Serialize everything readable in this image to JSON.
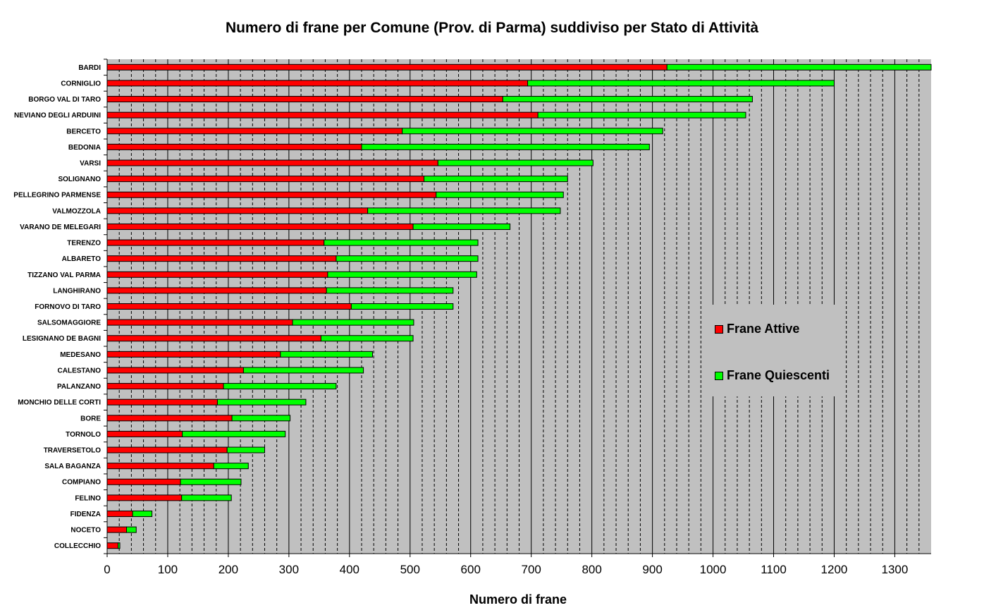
{
  "chart_data": {
    "type": "bar",
    "orientation": "horizontal",
    "stacked": true,
    "title": "Numero di frane per Comune (Prov. di Parma) suddiviso per Stato di Attività",
    "xlabel": "Numero di frane",
    "ylabel": "",
    "xlim": [
      0,
      1360
    ],
    "x_ticks": [
      0,
      100,
      200,
      300,
      400,
      500,
      600,
      700,
      800,
      900,
      1000,
      1100,
      1200,
      1300
    ],
    "grid": "vertical major solid + minor dashed",
    "background": "#c0c0c0",
    "legend_position": "right-middle",
    "categories": [
      "BARDI",
      "CORNIGLIO",
      "BORGO VAL DI TARO",
      "NEVIANO DEGLI ARDUINI",
      "BERCETO",
      "BEDONIA",
      "VARSI",
      "SOLIGNANO",
      "PELLEGRINO PARMENSE",
      "VALMOZZOLA",
      "VARANO DE MELEGARI",
      "TERENZO",
      "ALBARETO",
      "TIZZANO VAL PARMA",
      "LANGHIRANO",
      "FORNOVO DI TARO",
      "SALSOMAGGIORE",
      "LESIGNANO DE BAGNI",
      "MEDESANO",
      "CALESTANO",
      "PALANZANO",
      "MONCHIO DELLE CORTI",
      "BORE",
      "TORNOLO",
      "TRAVERSETOLO",
      "SALA BAGANZA",
      "COMPIANO",
      "FELINO",
      "FIDENZA",
      "NOCETO",
      "COLLECCHIO"
    ],
    "series": [
      {
        "name": "Frane Attive",
        "color": "#ff0000",
        "values": [
          924,
          694,
          653,
          711,
          487,
          420,
          546,
          523,
          543,
          430,
          505,
          358,
          378,
          364,
          362,
          403,
          306,
          353,
          286,
          225,
          192,
          182,
          206,
          124,
          198,
          176,
          121,
          123,
          42,
          32,
          18
        ]
      },
      {
        "name": "Frane Quiescenti",
        "color": "#00ff00",
        "values": [
          436,
          506,
          412,
          343,
          430,
          475,
          256,
          237,
          210,
          318,
          160,
          254,
          234,
          246,
          209,
          168,
          200,
          152,
          152,
          198,
          186,
          146,
          96,
          170,
          62,
          57,
          100,
          82,
          32,
          16,
          3
        ]
      }
    ]
  }
}
